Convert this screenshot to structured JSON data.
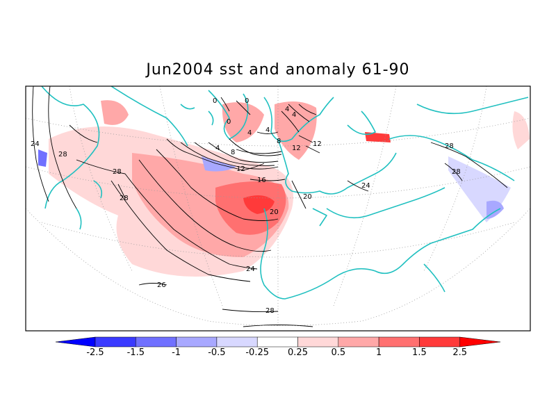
{
  "title": "Jun2004 sst and anomaly 61-90",
  "colorbar": {
    "labels": [
      "-2.5",
      "-1.5",
      "-1",
      "-0.5",
      "-0.25",
      "0.25",
      "0.5",
      "1",
      "1.5",
      "2.5"
    ],
    "colors": [
      "#0000ff",
      "#3a3aff",
      "#7070ff",
      "#a8a8ff",
      "#d8d8ff",
      "#ffffff",
      "#ffd8d8",
      "#ffa8a8",
      "#ff7070",
      "#ff3a3a",
      "#ff0000"
    ]
  },
  "contour_labels": [
    "24",
    "28",
    "28",
    "28",
    "0",
    "0",
    "0",
    "4",
    "4",
    "4",
    "4",
    "4",
    "8",
    "8",
    "12",
    "12",
    "12",
    "16",
    "20",
    "20",
    "24",
    "24",
    "26",
    "28",
    "28",
    "28"
  ],
  "colors": {
    "coast": "#20c0c0",
    "contour": "#000000",
    "grid": "#888888"
  }
}
